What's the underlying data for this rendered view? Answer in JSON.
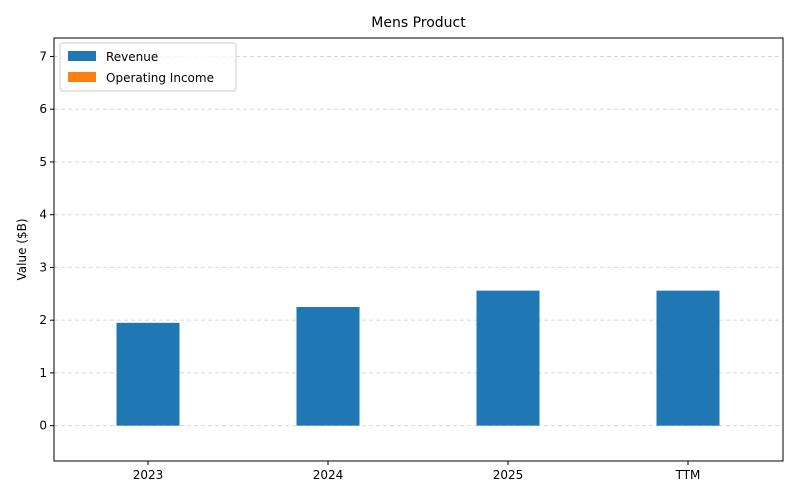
{
  "chart_data": {
    "type": "bar",
    "title": "Mens Product",
    "xlabel": "",
    "ylabel": "Value ($B)",
    "categories": [
      "2023",
      "2024",
      "2025",
      "TTM"
    ],
    "series": [
      {
        "name": "Revenue",
        "color": "#1f77b4",
        "values": [
          1.95,
          2.25,
          2.56,
          2.56
        ]
      },
      {
        "name": "Operating Income",
        "color": "#ff7f0e",
        "values": [
          0,
          0,
          0,
          0
        ]
      }
    ],
    "ylim": [
      -0.67,
      7.35
    ],
    "yticks": [
      0,
      1,
      2,
      3,
      4,
      5,
      6,
      7
    ],
    "grid": "y-dashed",
    "legend_position": "top-left"
  }
}
